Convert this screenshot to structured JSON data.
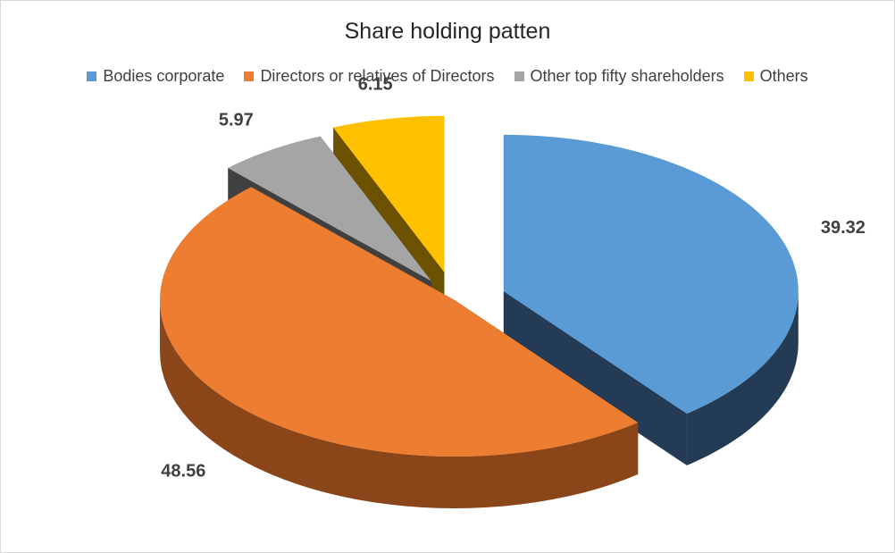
{
  "chart_data": {
    "type": "pie",
    "title": "Share holding patten",
    "legend_position": "top",
    "exploded": true,
    "three_d": true,
    "slices": [
      {
        "name": "Bodies corporate",
        "value": 39.32,
        "color": "#5b9bd5",
        "side_color": "#243b55"
      },
      {
        "name": "Directors or relatives of Directors",
        "value": 48.56,
        "color": "#ed7d31",
        "side_color": "#8a4518"
      },
      {
        "name": "Other top fifty shareholders",
        "value": 5.97,
        "color": "#a5a5a5",
        "side_color": "#404040"
      },
      {
        "name": "Others",
        "value": 6.15,
        "color": "#ffc000",
        "side_color": "#6b5100"
      }
    ]
  }
}
